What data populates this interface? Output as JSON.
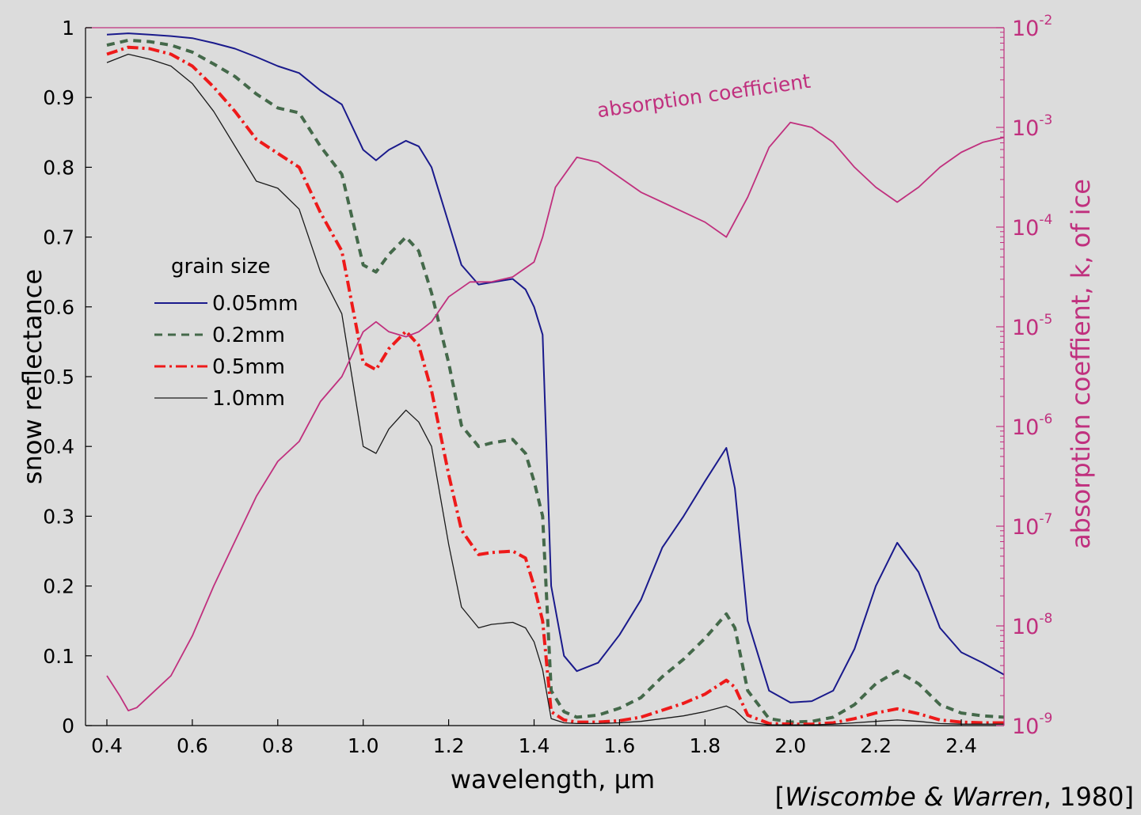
{
  "chart_data": {
    "type": "line",
    "xlabel": "wavelength, μm",
    "ylabel": "snow reflectance",
    "y2label": "absorption coeffient, k, of ice",
    "xlim": [
      0.35,
      2.5
    ],
    "ylim": [
      0,
      1
    ],
    "y2lim_log10": [
      -9,
      -2
    ],
    "y2scale": "log",
    "xticks": [
      0.4,
      0.6,
      0.8,
      1.0,
      1.2,
      1.4,
      1.6,
      1.8,
      2.0,
      2.2,
      2.4
    ],
    "xtick_labels": [
      "0.4",
      "0.6",
      "0.8",
      "1.0",
      "1.2",
      "1.4",
      "1.6",
      "1.8",
      "2.0",
      "2.2",
      "2.4"
    ],
    "yticks": [
      0,
      0.1,
      0.2,
      0.3,
      0.4,
      0.5,
      0.6,
      0.7,
      0.8,
      0.9,
      1
    ],
    "ytick_labels": [
      "0",
      "0.1",
      "0.2",
      "0.3",
      "0.4",
      "0.5",
      "0.6",
      "0.7",
      "0.8",
      "0.9",
      "1"
    ],
    "y2ticks": [
      {
        "base": "10",
        "exp": "-9"
      },
      {
        "base": "10",
        "exp": "-8"
      },
      {
        "base": "10",
        "exp": "-7"
      },
      {
        "base": "10",
        "exp": "-6"
      },
      {
        "base": "10",
        "exp": "-5"
      },
      {
        "base": "10",
        "exp": "-4"
      },
      {
        "base": "10",
        "exp": "-3"
      },
      {
        "base": "10",
        "exp": "-2"
      }
    ],
    "legend_title": "grain size",
    "legend_position": "center-left",
    "grid": false,
    "series": [
      {
        "name": "0.05mm",
        "color": "#1a1a8c",
        "dash": "solid",
        "width": 2,
        "axis": "left",
        "x": [
          0.4,
          0.45,
          0.5,
          0.55,
          0.6,
          0.65,
          0.7,
          0.75,
          0.8,
          0.85,
          0.9,
          0.95,
          1.0,
          1.03,
          1.06,
          1.1,
          1.13,
          1.16,
          1.2,
          1.23,
          1.27,
          1.3,
          1.35,
          1.38,
          1.4,
          1.42,
          1.44,
          1.47,
          1.5,
          1.55,
          1.6,
          1.65,
          1.7,
          1.75,
          1.8,
          1.85,
          1.87,
          1.9,
          1.95,
          2.0,
          2.05,
          2.1,
          2.15,
          2.2,
          2.25,
          2.3,
          2.35,
          2.4,
          2.45,
          2.5
        ],
        "y": [
          0.99,
          0.992,
          0.99,
          0.988,
          0.985,
          0.978,
          0.97,
          0.958,
          0.945,
          0.935,
          0.91,
          0.89,
          0.825,
          0.81,
          0.825,
          0.838,
          0.83,
          0.8,
          0.72,
          0.66,
          0.632,
          0.635,
          0.64,
          0.625,
          0.6,
          0.56,
          0.2,
          0.1,
          0.078,
          0.09,
          0.13,
          0.18,
          0.255,
          0.3,
          0.35,
          0.398,
          0.34,
          0.15,
          0.05,
          0.033,
          0.035,
          0.05,
          0.11,
          0.2,
          0.262,
          0.22,
          0.14,
          0.105,
          0.09,
          0.073
        ]
      },
      {
        "name": "0.2mm",
        "color": "#44694a",
        "dash": "10,7",
        "width": 4,
        "axis": "left",
        "x": [
          0.4,
          0.45,
          0.5,
          0.55,
          0.6,
          0.65,
          0.7,
          0.75,
          0.8,
          0.85,
          0.9,
          0.95,
          1.0,
          1.03,
          1.06,
          1.1,
          1.13,
          1.16,
          1.2,
          1.23,
          1.27,
          1.3,
          1.35,
          1.38,
          1.4,
          1.42,
          1.44,
          1.47,
          1.5,
          1.55,
          1.6,
          1.65,
          1.7,
          1.75,
          1.8,
          1.85,
          1.87,
          1.9,
          1.95,
          2.0,
          2.05,
          2.1,
          2.15,
          2.2,
          2.25,
          2.3,
          2.35,
          2.4,
          2.45,
          2.5
        ],
        "y": [
          0.975,
          0.982,
          0.98,
          0.975,
          0.965,
          0.948,
          0.93,
          0.905,
          0.885,
          0.878,
          0.83,
          0.79,
          0.66,
          0.65,
          0.675,
          0.7,
          0.68,
          0.62,
          0.52,
          0.43,
          0.4,
          0.405,
          0.41,
          0.39,
          0.35,
          0.3,
          0.05,
          0.02,
          0.012,
          0.015,
          0.025,
          0.04,
          0.07,
          0.095,
          0.125,
          0.16,
          0.14,
          0.05,
          0.01,
          0.005,
          0.006,
          0.012,
          0.03,
          0.06,
          0.078,
          0.06,
          0.03,
          0.018,
          0.014,
          0.012
        ]
      },
      {
        "name": "0.5mm",
        "color": "#ee1a1a",
        "dash": "14,5,3,5",
        "width": 4,
        "axis": "left",
        "x": [
          0.4,
          0.45,
          0.5,
          0.55,
          0.6,
          0.65,
          0.7,
          0.75,
          0.8,
          0.85,
          0.9,
          0.95,
          1.0,
          1.03,
          1.06,
          1.1,
          1.13,
          1.16,
          1.2,
          1.23,
          1.27,
          1.3,
          1.35,
          1.38,
          1.4,
          1.42,
          1.44,
          1.47,
          1.5,
          1.55,
          1.6,
          1.65,
          1.7,
          1.75,
          1.8,
          1.85,
          1.87,
          1.9,
          1.95,
          2.0,
          2.05,
          2.1,
          2.15,
          2.2,
          2.25,
          2.3,
          2.35,
          2.4,
          2.45,
          2.5
        ],
        "y": [
          0.962,
          0.972,
          0.97,
          0.962,
          0.945,
          0.915,
          0.88,
          0.84,
          0.82,
          0.8,
          0.735,
          0.68,
          0.52,
          0.51,
          0.54,
          0.565,
          0.545,
          0.48,
          0.36,
          0.28,
          0.245,
          0.248,
          0.25,
          0.24,
          0.2,
          0.15,
          0.02,
          0.008,
          0.005,
          0.005,
          0.007,
          0.012,
          0.022,
          0.032,
          0.045,
          0.065,
          0.055,
          0.015,
          0.003,
          0.002,
          0.002,
          0.004,
          0.01,
          0.018,
          0.024,
          0.017,
          0.008,
          0.005,
          0.004,
          0.004
        ]
      },
      {
        "name": "1.0mm",
        "color": "#1a1a1a",
        "dash": "solid",
        "width": 1.3,
        "axis": "left",
        "x": [
          0.4,
          0.45,
          0.5,
          0.55,
          0.6,
          0.65,
          0.7,
          0.75,
          0.8,
          0.85,
          0.9,
          0.95,
          1.0,
          1.03,
          1.06,
          1.1,
          1.13,
          1.16,
          1.2,
          1.23,
          1.27,
          1.3,
          1.35,
          1.38,
          1.4,
          1.42,
          1.44,
          1.47,
          1.5,
          1.55,
          1.6,
          1.65,
          1.7,
          1.75,
          1.8,
          1.85,
          1.87,
          1.9,
          1.95,
          2.0,
          2.05,
          2.1,
          2.15,
          2.2,
          2.25,
          2.3,
          2.35,
          2.4,
          2.45,
          2.5
        ],
        "y": [
          0.95,
          0.962,
          0.955,
          0.945,
          0.92,
          0.88,
          0.83,
          0.78,
          0.77,
          0.74,
          0.65,
          0.59,
          0.4,
          0.39,
          0.425,
          0.452,
          0.435,
          0.4,
          0.26,
          0.17,
          0.14,
          0.145,
          0.148,
          0.14,
          0.12,
          0.08,
          0.01,
          0.004,
          0.003,
          0.003,
          0.004,
          0.006,
          0.01,
          0.014,
          0.02,
          0.028,
          0.022,
          0.005,
          0.001,
          0.001,
          0.001,
          0.002,
          0.004,
          0.006,
          0.008,
          0.006,
          0.003,
          0.002,
          0.002,
          0.002
        ]
      },
      {
        "name": "absorption coefficient",
        "color": "#c0307e",
        "dash": "solid",
        "width": 1.8,
        "axis": "right",
        "x": [
          0.4,
          0.43,
          0.45,
          0.47,
          0.5,
          0.55,
          0.6,
          0.65,
          0.7,
          0.75,
          0.8,
          0.85,
          0.9,
          0.95,
          1.0,
          1.03,
          1.06,
          1.1,
          1.13,
          1.16,
          1.2,
          1.25,
          1.3,
          1.35,
          1.4,
          1.42,
          1.45,
          1.5,
          1.55,
          1.6,
          1.65,
          1.7,
          1.75,
          1.8,
          1.85,
          1.9,
          1.95,
          2.0,
          2.05,
          2.1,
          2.15,
          2.2,
          2.25,
          2.3,
          2.35,
          2.4,
          2.45,
          2.5
        ],
        "y": [
          -8.5,
          -8.7,
          -8.85,
          -8.82,
          -8.7,
          -8.5,
          -8.1,
          -7.6,
          -7.15,
          -6.7,
          -6.35,
          -6.15,
          -5.75,
          -5.5,
          -5.05,
          -4.95,
          -5.05,
          -5.1,
          -5.05,
          -4.95,
          -4.7,
          -4.55,
          -4.55,
          -4.5,
          -4.35,
          -4.1,
          -3.6,
          -3.3,
          -3.35,
          -3.5,
          -3.65,
          -3.75,
          -3.85,
          -3.95,
          -4.1,
          -3.7,
          -3.2,
          -2.95,
          -3.0,
          -3.15,
          -3.4,
          -3.6,
          -3.75,
          -3.6,
          -3.4,
          -3.25,
          -3.15,
          -3.1
        ]
      }
    ],
    "annotations": [
      {
        "text": "absorption coefficient",
        "x": 1.55,
        "y2_log10": -2.9
      }
    ],
    "citation": {
      "open": "[",
      "author1": "Wiscombe",
      "amp": " & ",
      "author2": "Warren",
      "year": ", 1980]"
    }
  }
}
